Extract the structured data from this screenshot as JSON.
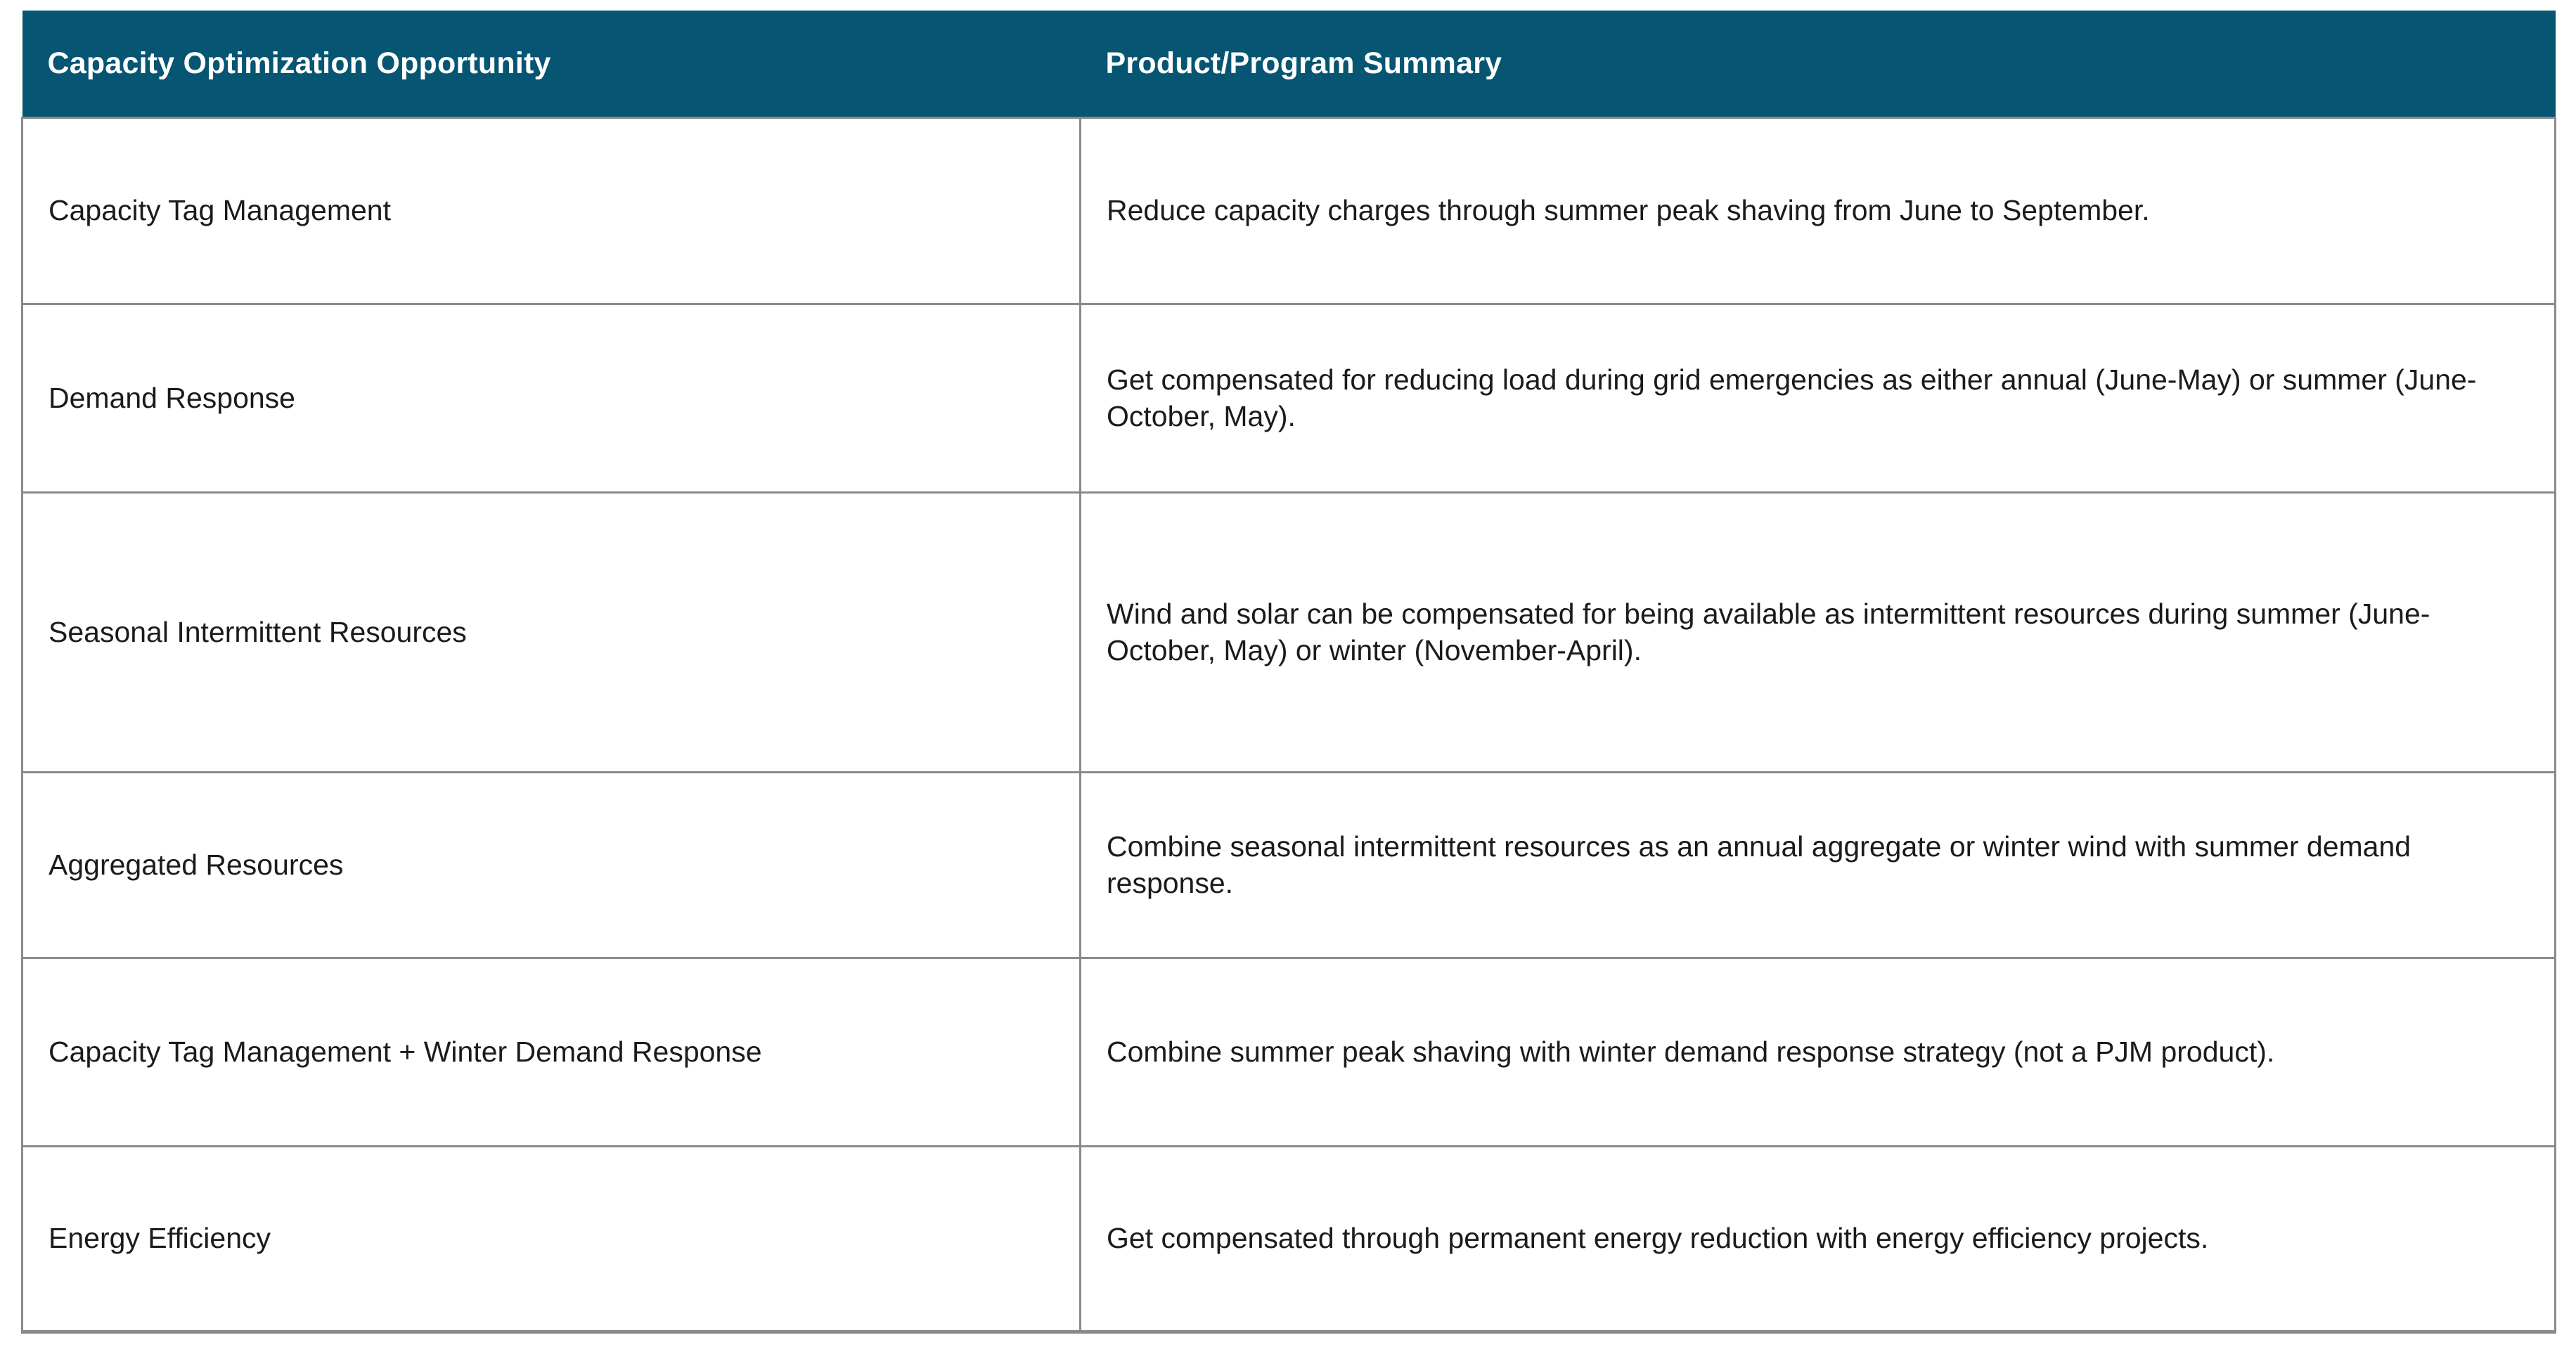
{
  "table": {
    "colors": {
      "header_bg": "#055573",
      "header_text": "#ffffff",
      "body_text": "#1b1b1b",
      "border": "#8a8a8a"
    },
    "columns": [
      {
        "label": "Capacity Optimization Opportunity"
      },
      {
        "label": "Product/Program Summary"
      }
    ],
    "rows": [
      {
        "opportunity": "Capacity Tag Management",
        "summary": "Reduce capacity charges through summer peak shaving from June to September."
      },
      {
        "opportunity": "Demand Response",
        "summary": "Get compensated for reducing load during grid emergencies as either annual (June-May) or summer (June-\nOctober, May)."
      },
      {
        "opportunity": "Seasonal Intermittent Resources",
        "summary": "Wind and solar can be compensated for being available as intermittent resources during summer (June-\nOctober, May) or winter (November-April)."
      },
      {
        "opportunity": "Aggregated Resources",
        "summary": "Combine seasonal intermittent resources as an annual aggregate or winter wind with summer demand\nresponse."
      },
      {
        "opportunity": "Capacity Tag Management + Winter Demand Response",
        "summary": "Combine summer peak shaving with winter demand response strategy (not a PJM product)."
      },
      {
        "opportunity": "Energy Efficiency",
        "summary": "Get compensated through permanent energy reduction with energy efficiency projects."
      }
    ]
  }
}
